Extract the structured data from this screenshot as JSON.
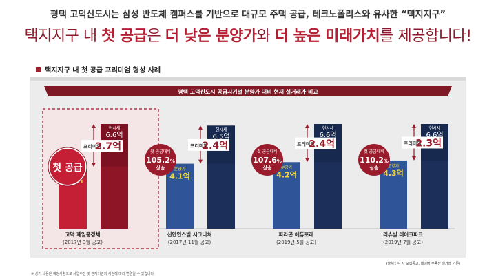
{
  "header": {
    "line1": "평택 고덕신도시는 삼성 반도체 캠퍼스를 기반으로 대규모 주택 공급, 테크노폴리스와 유사한 “택지지구”",
    "line2_parts": [
      "택지지구 내 ",
      "첫 공급",
      "은 ",
      "더 낮은 분양가",
      "와 ",
      "더 높은 미래가치",
      "를 제공합니다!"
    ]
  },
  "section_title": "택지지구 내 첫 공급 프리미엄 형성 사례",
  "chart_data": {
    "type": "bar",
    "title": "평택 고덕신도시 공급시기별 분양가 대비 현재 실거래가 비교",
    "categories": [
      {
        "name": "고덕 제일풍경채",
        "date": "(2017년 3월 공고)"
      },
      {
        "name": "신안인스빌 시그니쳐",
        "date": "(2017년 11월 공고)"
      },
      {
        "name": "파라곤 에듀포레",
        "date": "(2019년 5월 공고)"
      },
      {
        "name": "리슈빌 레이크파크",
        "date": "(2019년 7월 공고)"
      }
    ],
    "series": [
      {
        "name": "분양가",
        "values": [
          3.9,
          4.1,
          4.2,
          4.3
        ]
      },
      {
        "name": "현시세",
        "values": [
          6.6,
          6.5,
          6.6,
          6.6
        ]
      }
    ],
    "premium": [
      2.7,
      2.4,
      2.4,
      2.3
    ],
    "compare_pct": [
      null,
      "105.2",
      "107.6",
      "110.2"
    ],
    "highlight": "첫 공급",
    "labels": {
      "presale": "분양가",
      "current": "현시세",
      "premium": "프리미엄",
      "unit": "억",
      "compare_top": "첫 공급대비",
      "compare_bottom": "상승",
      "pct": "%"
    },
    "footnote_right": "(출처 : 각 사 모집공고, 네이버 부동산 실거래 기준)",
    "footnote_left": "※ 상기 내용은 예정사항으로 사업추진 및 관계기관의 사정에 따라 변경될 수 있습니다.",
    "colors": {
      "presale_bar": "#c41f35",
      "current_bar": "#8e1526",
      "presale_bar_blue": "#2f5598",
      "current_bar_blue": "#1b2f5a",
      "value_yellow": "#f3d63c",
      "premium_text": "#9a1c2c",
      "title_bar": "#7e1a26"
    }
  }
}
